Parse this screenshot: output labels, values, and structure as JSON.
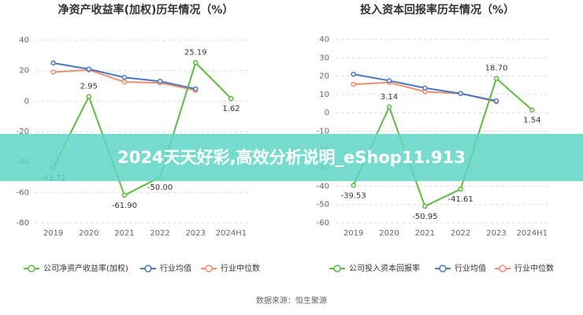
{
  "chart_data": [
    {
      "type": "line",
      "title": "净资产收益率(加权)历年情况（%）",
      "categories": [
        "2019",
        "2020",
        "2021",
        "2022",
        "2023",
        "2024H1"
      ],
      "ylim": [
        -80,
        40
      ],
      "yticks": [
        -80,
        -60,
        -40,
        -20,
        0,
        20,
        40
      ],
      "grid": true,
      "series": [
        {
          "name": "公司净资产收益率(加权)",
          "color": "#5dbb3f",
          "values": [
            -43.72,
            2.95,
            -61.9,
            -50.0,
            25.19,
            1.62
          ],
          "value_labels": [
            "-43.72",
            "2.95",
            "-61.90",
            "-50.00",
            "25.19",
            "1.62"
          ]
        },
        {
          "name": "行业均值",
          "color": "#4a78c2",
          "values": [
            25,
            21,
            15.5,
            13,
            8,
            null
          ]
        },
        {
          "name": "行业中位数",
          "color": "#ee8e6d",
          "values": [
            19,
            20.5,
            12.5,
            12,
            7,
            null
          ]
        }
      ]
    },
    {
      "type": "line",
      "title": "投入资本回报率历年情况（%）",
      "categories": [
        "2019",
        "2020",
        "2021",
        "2022",
        "2023",
        "2024H1"
      ],
      "ylim": [
        -60,
        40
      ],
      "yticks": [
        -60,
        -50,
        -40,
        -30,
        -20,
        -10,
        0,
        10,
        20,
        30,
        40
      ],
      "grid": true,
      "series": [
        {
          "name": "公司投入资本回报率",
          "color": "#5dbb3f",
          "values": [
            -39.53,
            3.14,
            -50.95,
            -41.61,
            18.7,
            1.54
          ],
          "value_labels": [
            "-39.53",
            "3.14",
            "-50.95",
            "-41.61",
            "18.70",
            "1.54"
          ]
        },
        {
          "name": "行业均值",
          "color": "#4a78c2",
          "values": [
            21,
            17.5,
            13.5,
            10.5,
            6.5,
            null
          ]
        },
        {
          "name": "行业中位数",
          "color": "#ee8e6d",
          "values": [
            15.5,
            16.5,
            11.5,
            10.5,
            6,
            null
          ]
        }
      ]
    }
  ],
  "banner": "2024天天好彩,高效分析说明_eShop11.913",
  "source": "数据来源：恒生聚源"
}
